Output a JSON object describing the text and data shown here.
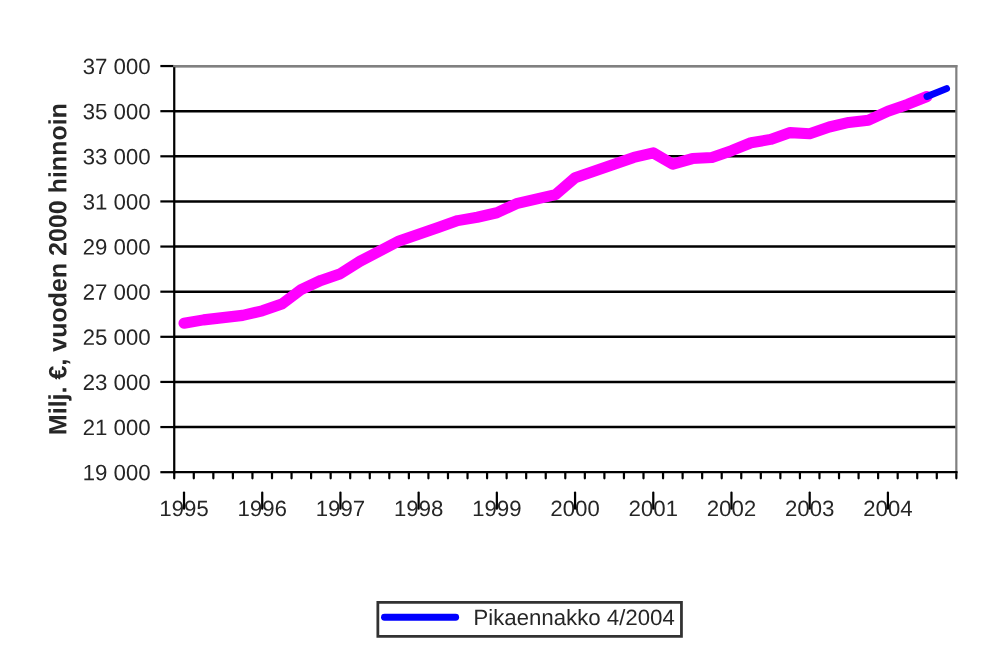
{
  "chart_data": {
    "type": "line",
    "ylabel": "Milj. €, vuoden 2000 hinnoin",
    "categories": [
      "1995",
      null,
      null,
      null,
      "1996",
      null,
      null,
      null,
      "1997",
      null,
      null,
      null,
      "1998",
      null,
      null,
      null,
      "1999",
      null,
      null,
      null,
      "2000",
      null,
      null,
      null,
      "2001",
      null,
      null,
      null,
      "2002",
      null,
      null,
      null,
      "2003",
      null,
      null,
      null,
      "2004",
      null,
      null,
      null
    ],
    "series": [
      {
        "color": "#ff00ff",
        "values": [
          25600,
          25750,
          25850,
          25950,
          26150,
          26450,
          27100,
          27500,
          27800,
          28350,
          28800,
          29250,
          29550,
          29850,
          30150,
          30300,
          30500,
          30900,
          31100,
          31300,
          32050,
          32350,
          32650,
          32950,
          33150,
          32650,
          32900,
          32950,
          33250,
          33600,
          33750,
          34050,
          34000,
          34300,
          34500,
          34600,
          35000,
          35300,
          35650,
          null
        ]
      },
      {
        "name": "Pikaennakko 4/2004",
        "color": "#0000ff",
        "values": [
          null,
          null,
          null,
          null,
          null,
          null,
          null,
          null,
          null,
          null,
          null,
          null,
          null,
          null,
          null,
          null,
          null,
          null,
          null,
          null,
          null,
          null,
          null,
          null,
          null,
          null,
          null,
          null,
          null,
          null,
          null,
          null,
          null,
          null,
          null,
          null,
          null,
          null,
          35650,
          36000
        ]
      }
    ],
    "ylim": [
      19000,
      37000
    ],
    "yticks": [
      {
        "value": 19000,
        "label": "19 000"
      },
      {
        "value": 21000,
        "label": "21 000"
      },
      {
        "value": 23000,
        "label": "23 000"
      },
      {
        "value": 25000,
        "label": "25 000"
      },
      {
        "value": 27000,
        "label": "27 000"
      },
      {
        "value": 29000,
        "label": "29 000"
      },
      {
        "value": 31000,
        "label": "31 000"
      },
      {
        "value": 33000,
        "label": "33 000"
      },
      {
        "value": 35000,
        "label": "35 000"
      },
      {
        "value": 37000,
        "label": "37 000"
      }
    ],
    "grid": "y",
    "legend": "bottom",
    "marker": "none",
    "line_style": "solid"
  }
}
